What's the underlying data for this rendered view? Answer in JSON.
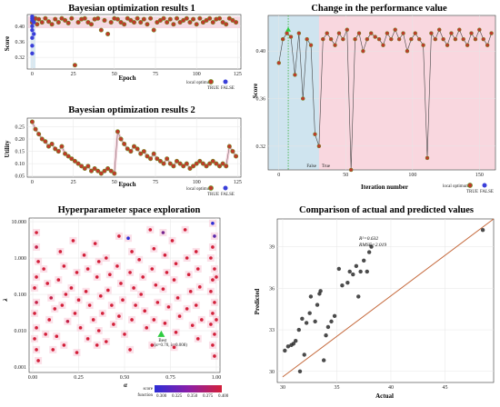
{
  "colors": {
    "point_true": "#c0392b",
    "point_false": "#3a3fd9",
    "point_stroke": "#6b8e23",
    "region_true": "#f9d7df",
    "region_false": "#cfe4ef",
    "fit_line": "#c56a3d",
    "best_marker": "#2ecc40"
  },
  "panel1": {
    "title": "Bayesian optimization results 1",
    "xlabel": "Epoch",
    "ylabel": "Score",
    "legend_title": "local optimum",
    "legend_true": "TRUE",
    "legend_false": "FALSE"
  },
  "panel2": {
    "title": "Bayesian optimization results 2",
    "xlabel": "Epoch",
    "ylabel": "Utility",
    "legend_title": "local optimum",
    "legend_true": "TRUE",
    "legend_false": "FALSE"
  },
  "panel3": {
    "title": "Change in the performance value",
    "xlabel": "Iteration number",
    "ylabel": "Score",
    "region_false_label": "False",
    "region_true_label": "True",
    "legend_title": "local optimum",
    "legend_true": "TRUE",
    "legend_false": "FALSE"
  },
  "panel4": {
    "title": "Hyperparameter space exploration",
    "xlabel": "α",
    "ylabel": "λ",
    "best_label": "Best",
    "best_coords": "(α=0.70, λ=0.008)",
    "legend_score": "score",
    "legend_function": "function",
    "colorbar_ticks": [
      "0.300",
      "0.325",
      "0.350",
      "0.375",
      "0.400"
    ]
  },
  "panel5": {
    "title": "Comparison of actual and predicted values",
    "xlabel": "Actual",
    "ylabel": "Predicted",
    "r2": "R²=0.632",
    "rmse": "RMSE=2.019"
  },
  "chart_data": [
    {
      "type": "scatter",
      "title": "Bayesian optimization results 1",
      "xlabel": "Epoch",
      "ylabel": "Score",
      "xlim": [
        -3,
        127
      ],
      "ylim": [
        0.29,
        0.43
      ],
      "xticks": [
        0,
        25,
        50,
        75,
        100,
        125
      ],
      "yticks": [
        0.32,
        0.36,
        0.4
      ],
      "series": [
        {
          "name": "TRUE",
          "x": [
            0,
            1,
            2,
            3,
            4,
            6,
            8,
            10,
            12,
            14,
            16,
            18,
            20,
            22,
            24,
            26,
            28,
            30,
            32,
            34,
            36,
            38,
            40,
            42,
            44,
            46,
            48,
            50,
            52,
            54,
            56,
            58,
            60,
            62,
            64,
            66,
            68,
            70,
            72,
            74,
            76,
            78,
            80,
            82,
            84,
            86,
            88,
            90,
            92,
            94,
            96,
            98,
            100,
            102,
            104,
            106,
            108,
            110,
            112,
            114,
            116,
            118,
            120,
            122,
            124
          ],
          "y": [
            0.41,
            0.415,
            0.42,
            0.405,
            0.418,
            0.41,
            0.42,
            0.412,
            0.405,
            0.418,
            0.41,
            0.42,
            0.415,
            0.408,
            0.42,
            0.3,
            0.41,
            0.418,
            0.42,
            0.41,
            0.405,
            0.418,
            0.42,
            0.39,
            0.415,
            0.38,
            0.41,
            0.42,
            0.418,
            0.41,
            0.405,
            0.42,
            0.415,
            0.41,
            0.42,
            0.41,
            0.418,
            0.405,
            0.42,
            0.39,
            0.41,
            0.415,
            0.42,
            0.41,
            0.418,
            0.405,
            0.42,
            0.41,
            0.415,
            0.42,
            0.41,
            0.418,
            0.405,
            0.42,
            0.41,
            0.415,
            0.42,
            0.41,
            0.418,
            0.42,
            0.41,
            0.405,
            0.42,
            0.415,
            0.41
          ]
        },
        {
          "name": "FALSE",
          "x": [
            0,
            0,
            0,
            0,
            0,
            0,
            0,
            0,
            1,
            1
          ],
          "y": [
            0.425,
            0.42,
            0.415,
            0.4,
            0.39,
            0.37,
            0.35,
            0.33,
            0.41,
            0.38
          ]
        }
      ]
    },
    {
      "type": "line",
      "title": "Bayesian optimization results 2",
      "xlabel": "Epoch",
      "ylabel": "Utility",
      "xlim": [
        -3,
        127
      ],
      "ylim": [
        0.045,
        0.285
      ],
      "xticks": [
        0,
        25,
        50,
        75,
        100,
        125
      ],
      "yticks": [
        0.05,
        0.1,
        0.15,
        0.2,
        0.25
      ],
      "series": [
        {
          "name": "TRUE",
          "x": [
            0,
            2,
            4,
            6,
            8,
            10,
            12,
            14,
            16,
            18,
            20,
            22,
            24,
            26,
            28,
            30,
            32,
            34,
            36,
            38,
            40,
            42,
            44,
            46,
            48,
            50,
            52,
            54,
            56,
            58,
            60,
            62,
            64,
            66,
            68,
            70,
            72,
            74,
            76,
            78,
            80,
            82,
            84,
            86,
            88,
            90,
            92,
            94,
            96,
            98,
            100,
            102,
            104,
            106,
            108,
            110,
            112,
            114,
            116,
            118,
            120,
            122,
            124
          ],
          "y": [
            0.27,
            0.24,
            0.22,
            0.2,
            0.19,
            0.17,
            0.18,
            0.16,
            0.15,
            0.17,
            0.14,
            0.13,
            0.12,
            0.11,
            0.1,
            0.09,
            0.08,
            0.09,
            0.07,
            0.08,
            0.07,
            0.06,
            0.07,
            0.08,
            0.07,
            0.06,
            0.23,
            0.2,
            0.18,
            0.16,
            0.15,
            0.17,
            0.16,
            0.14,
            0.15,
            0.13,
            0.12,
            0.14,
            0.12,
            0.11,
            0.1,
            0.12,
            0.1,
            0.09,
            0.11,
            0.1,
            0.09,
            0.1,
            0.08,
            0.09,
            0.1,
            0.11,
            0.1,
            0.09,
            0.1,
            0.11,
            0.1,
            0.09,
            0.1,
            0.09,
            0.17,
            0.15,
            0.13
          ]
        }
      ]
    },
    {
      "type": "line",
      "title": "Change in the performance value",
      "xlabel": "Iteration number",
      "ylabel": "Score",
      "xlim": [
        -8,
        162
      ],
      "ylim": [
        0.3,
        0.43
      ],
      "xticks": [
        0,
        50,
        100,
        150
      ],
      "yticks": [
        0.32,
        0.36,
        0.4
      ],
      "series": [
        {
          "name": "Score",
          "x": [
            0,
            3,
            6,
            9,
            12,
            15,
            18,
            21,
            24,
            27,
            30,
            33,
            36,
            39,
            42,
            45,
            48,
            51,
            54,
            57,
            60,
            63,
            66,
            69,
            72,
            75,
            78,
            81,
            84,
            87,
            90,
            93,
            96,
            99,
            102,
            105,
            108,
            111,
            114,
            117,
            120,
            123,
            126,
            129,
            132,
            135,
            138,
            141,
            144,
            147,
            150,
            153,
            156,
            159
          ],
          "y": [
            0.39,
            0.41,
            0.415,
            0.412,
            0.38,
            0.415,
            0.36,
            0.41,
            0.405,
            0.33,
            0.32,
            0.41,
            0.415,
            0.41,
            0.405,
            0.415,
            0.41,
            0.418,
            0.3,
            0.41,
            0.415,
            0.4,
            0.41,
            0.415,
            0.412,
            0.41,
            0.405,
            0.415,
            0.41,
            0.418,
            0.41,
            0.415,
            0.4,
            0.41,
            0.415,
            0.41,
            0.405,
            0.31,
            0.415,
            0.41,
            0.418,
            0.41,
            0.405,
            0.415,
            0.41,
            0.418,
            0.41,
            0.405,
            0.415,
            0.41,
            0.418,
            0.41,
            0.405,
            0.415
          ]
        }
      ]
    },
    {
      "type": "scatter",
      "title": "Hyperparameter space exploration",
      "xlabel": "α",
      "ylabel": "λ",
      "xlim": [
        -0.02,
        1.02
      ],
      "ylim_log10": [
        -3.15,
        1.1
      ],
      "xticks": [
        0.0,
        0.25,
        0.5,
        0.75,
        1.0
      ],
      "yticks": [
        0.001,
        0.01,
        0.1,
        1.0,
        10.0
      ],
      "best": {
        "alpha": 0.7,
        "lambda": 0.008
      },
      "points": [
        [
          0.02,
          5.0,
          0.41
        ],
        [
          0.02,
          2.0,
          0.4
        ],
        [
          0.03,
          0.8,
          0.41
        ],
        [
          0.02,
          0.3,
          0.41
        ],
        [
          0.01,
          0.15,
          0.41
        ],
        [
          0.02,
          0.06,
          0.4
        ],
        [
          0.01,
          0.03,
          0.41
        ],
        [
          0.02,
          0.012,
          0.41
        ],
        [
          0.01,
          0.006,
          0.41
        ],
        [
          0.02,
          0.003,
          0.41
        ],
        [
          0.03,
          0.0015,
          0.41
        ],
        [
          0.06,
          0.5,
          0.41
        ],
        [
          0.08,
          0.2,
          0.41
        ],
        [
          0.1,
          0.08,
          0.4
        ],
        [
          0.12,
          0.04,
          0.41
        ],
        [
          0.09,
          0.02,
          0.41
        ],
        [
          0.07,
          0.008,
          0.41
        ],
        [
          0.11,
          0.003,
          0.41
        ],
        [
          0.15,
          1.5,
          0.41
        ],
        [
          0.17,
          0.6,
          0.41
        ],
        [
          0.14,
          0.25,
          0.41
        ],
        [
          0.18,
          0.1,
          0.41
        ],
        [
          0.16,
          0.05,
          0.41
        ],
        [
          0.19,
          0.018,
          0.4
        ],
        [
          0.13,
          0.007,
          0.41
        ],
        [
          0.17,
          0.004,
          0.41
        ],
        [
          0.22,
          3.0,
          0.41
        ],
        [
          0.24,
          0.4,
          0.41
        ],
        [
          0.21,
          0.15,
          0.41
        ],
        [
          0.25,
          0.07,
          0.41
        ],
        [
          0.23,
          0.03,
          0.41
        ],
        [
          0.26,
          0.012,
          0.41
        ],
        [
          0.24,
          0.0025,
          0.41
        ],
        [
          0.28,
          1.2,
          0.41
        ],
        [
          0.3,
          0.5,
          0.41
        ],
        [
          0.29,
          0.12,
          0.41
        ],
        [
          0.31,
          0.05,
          0.41
        ],
        [
          0.33,
          0.02,
          0.41
        ],
        [
          0.3,
          0.006,
          0.41
        ],
        [
          0.34,
          2.5,
          0.41
        ],
        [
          0.36,
          0.8,
          0.41
        ],
        [
          0.35,
          0.3,
          0.41
        ],
        [
          0.37,
          0.09,
          0.41
        ],
        [
          0.38,
          0.03,
          0.41
        ],
        [
          0.36,
          0.01,
          0.41
        ],
        [
          0.35,
          0.004,
          0.41
        ],
        [
          0.4,
          1.0,
          0.41
        ],
        [
          0.42,
          0.35,
          0.41
        ],
        [
          0.41,
          0.13,
          0.41
        ],
        [
          0.43,
          0.05,
          0.41
        ],
        [
          0.44,
          0.015,
          0.41
        ],
        [
          0.4,
          0.005,
          0.41
        ],
        [
          0.47,
          4.0,
          0.41
        ],
        [
          0.46,
          0.6,
          0.41
        ],
        [
          0.48,
          0.2,
          0.41
        ],
        [
          0.49,
          0.07,
          0.41
        ],
        [
          0.47,
          0.025,
          0.41
        ],
        [
          0.5,
          0.008,
          0.41
        ],
        [
          0.52,
          3.5,
          0.3
        ],
        [
          0.54,
          1.5,
          0.41
        ],
        [
          0.53,
          0.4,
          0.41
        ],
        [
          0.55,
          0.15,
          0.41
        ],
        [
          0.56,
          0.05,
          0.41
        ],
        [
          0.54,
          0.02,
          0.41
        ],
        [
          0.53,
          0.003,
          0.41
        ],
        [
          0.58,
          0.9,
          0.41
        ],
        [
          0.6,
          0.3,
          0.41
        ],
        [
          0.59,
          0.1,
          0.41
        ],
        [
          0.61,
          0.035,
          0.41
        ],
        [
          0.62,
          0.012,
          0.41
        ],
        [
          0.64,
          6.0,
          0.41
        ],
        [
          0.66,
          1.8,
          0.41
        ],
        [
          0.65,
          0.5,
          0.41
        ],
        [
          0.67,
          0.18,
          0.41
        ],
        [
          0.68,
          0.06,
          0.41
        ],
        [
          0.66,
          0.02,
          0.41
        ],
        [
          0.65,
          0.004,
          0.41
        ],
        [
          0.71,
          5.0,
          0.35
        ],
        [
          0.72,
          1.2,
          0.41
        ],
        [
          0.73,
          0.4,
          0.41
        ],
        [
          0.71,
          0.14,
          0.41
        ],
        [
          0.74,
          0.045,
          0.41
        ],
        [
          0.72,
          0.016,
          0.41
        ],
        [
          0.76,
          3.0,
          0.41
        ],
        [
          0.78,
          0.7,
          0.41
        ],
        [
          0.77,
          0.25,
          0.41
        ],
        [
          0.79,
          0.08,
          0.41
        ],
        [
          0.8,
          0.025,
          0.41
        ],
        [
          0.78,
          0.009,
          0.41
        ],
        [
          0.77,
          0.0035,
          0.41
        ],
        [
          0.83,
          6.0,
          0.41
        ],
        [
          0.84,
          1.0,
          0.41
        ],
        [
          0.85,
          0.35,
          0.41
        ],
        [
          0.86,
          0.12,
          0.41
        ],
        [
          0.84,
          0.04,
          0.41
        ],
        [
          0.87,
          0.014,
          0.41
        ],
        [
          0.89,
          1.5,
          0.41
        ],
        [
          0.9,
          0.5,
          0.41
        ],
        [
          0.91,
          0.16,
          0.41
        ],
        [
          0.89,
          0.05,
          0.41
        ],
        [
          0.92,
          0.02,
          0.41
        ],
        [
          0.9,
          0.006,
          0.41
        ],
        [
          0.98,
          9.0,
          0.3
        ],
        [
          0.99,
          4.0,
          0.33
        ],
        [
          0.98,
          2.0,
          0.41
        ],
        [
          0.97,
          1.0,
          0.41
        ],
        [
          0.99,
          0.5,
          0.41
        ],
        [
          0.98,
          0.25,
          0.41
        ],
        [
          0.97,
          0.12,
          0.41
        ],
        [
          0.99,
          0.06,
          0.41
        ],
        [
          0.98,
          0.03,
          0.41
        ],
        [
          0.97,
          0.015,
          0.41
        ],
        [
          0.99,
          0.008,
          0.41
        ],
        [
          0.98,
          0.004,
          0.41
        ],
        [
          0.99,
          0.002,
          0.41
        ],
        [
          1.0,
          0.02,
          0.41
        ],
        [
          1.0,
          0.3,
          0.41
        ]
      ]
    },
    {
      "type": "scatter",
      "title": "Comparison of actual and predicted values",
      "xlabel": "Actual",
      "ylabel": "Predicted",
      "xlim": [
        29.5,
        49.5
      ],
      "ylim": [
        29.2,
        41.0
      ],
      "xticks": [
        30,
        35,
        40,
        45
      ],
      "yticks": [
        30,
        33,
        36,
        39
      ],
      "fit_line": {
        "x": [
          30,
          49.5
        ],
        "y": [
          29.6,
          41.5
        ]
      },
      "x": [
        30.2,
        30.5,
        30.8,
        31.0,
        31.2,
        31.5,
        31.6,
        31.8,
        32.0,
        32.2,
        32.5,
        32.6,
        33.0,
        33.2,
        33.4,
        33.5,
        33.8,
        34.0,
        34.2,
        34.5,
        34.8,
        35.2,
        35.5,
        36.0,
        36.2,
        36.5,
        36.8,
        37.0,
        37.2,
        37.5,
        37.8,
        38.0,
        38.2,
        48.5
      ],
      "y": [
        31.5,
        31.8,
        31.9,
        32.0,
        32.2,
        33.0,
        30.0,
        33.8,
        31.2,
        33.5,
        34.2,
        35.4,
        33.6,
        34.8,
        35.6,
        35.8,
        30.8,
        32.6,
        33.2,
        33.6,
        34.0,
        37.4,
        36.2,
        36.4,
        37.2,
        37.0,
        37.6,
        35.4,
        37.2,
        38.0,
        37.2,
        38.6,
        39.0,
        40.2
      ]
    }
  ]
}
